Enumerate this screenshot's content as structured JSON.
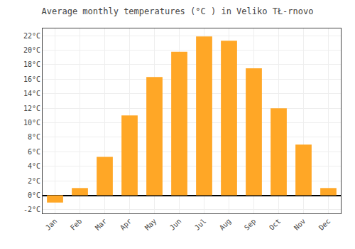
{
  "chart_data": {
    "type": "bar",
    "title": "Average monthly temperatures (°C ) in Veliko TŁ-rnovo",
    "categories": [
      "Jan",
      "Feb",
      "Mar",
      "Apr",
      "May",
      "Jun",
      "Jul",
      "Aug",
      "Sep",
      "Oct",
      "Nov",
      "Dec"
    ],
    "values": [
      -1.0,
      1.0,
      5.3,
      11.0,
      16.3,
      19.8,
      21.9,
      21.3,
      17.5,
      12.0,
      7.0,
      1.0
    ],
    "color": "#FFA726",
    "ylim": [
      -2.5,
      23.0
    ],
    "yticks": [
      {
        "value": -2,
        "label": "-2°C"
      },
      {
        "value": 0,
        "label": "0°C"
      },
      {
        "value": 2,
        "label": "2°C"
      },
      {
        "value": 4,
        "label": "4°C"
      },
      {
        "value": 6,
        "label": "6°C"
      },
      {
        "value": 8,
        "label": "8°C"
      },
      {
        "value": 10,
        "label": "10°C"
      },
      {
        "value": 12,
        "label": "12°C"
      },
      {
        "value": 14,
        "label": "14°C"
      },
      {
        "value": 16,
        "label": "16°C"
      },
      {
        "value": 18,
        "label": "18°C"
      },
      {
        "value": 20,
        "label": "20°C"
      },
      {
        "value": 22,
        "label": "22°C"
      }
    ],
    "grid": true
  }
}
